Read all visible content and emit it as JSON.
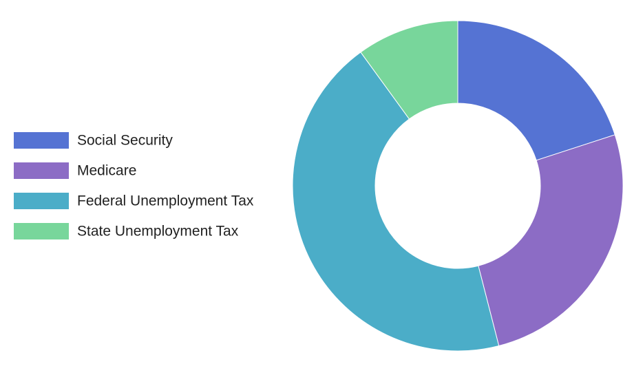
{
  "chart_data": {
    "type": "donut",
    "series": [
      {
        "name": "Social Security",
        "color": "#5573d3",
        "values": [
          20
        ]
      },
      {
        "name": "Medicare",
        "color": "#8c6cc5",
        "values": [
          26
        ]
      },
      {
        "name": "Federal Unemployment Tax",
        "color": "#4badc8",
        "values": [
          44
        ]
      },
      {
        "name": "State Unemployment Tax",
        "color": "#78d69b",
        "values": [
          10
        ]
      }
    ],
    "legend": "left"
  }
}
